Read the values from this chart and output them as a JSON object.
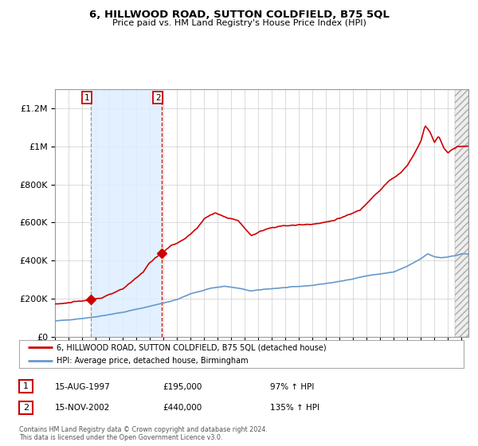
{
  "title": "6, HILLWOOD ROAD, SUTTON COLDFIELD, B75 5QL",
  "subtitle": "Price paid vs. HM Land Registry's House Price Index (HPI)",
  "hpi_label": "HPI: Average price, detached house, Birmingham",
  "property_label": "6, HILLWOOD ROAD, SUTTON COLDFIELD, B75 5QL (detached house)",
  "sale1_date": "15-AUG-1997",
  "sale1_price": 195000,
  "sale1_pct": "97% ↑ HPI",
  "sale2_date": "15-NOV-2002",
  "sale2_price": 440000,
  "sale2_pct": "135% ↑ HPI",
  "sale1_year": 1997.62,
  "sale2_year": 2002.88,
  "background_color": "#ffffff",
  "plot_bg_color": "#ffffff",
  "grid_color": "#cccccc",
  "hpi_color": "#6699cc",
  "property_color": "#cc0000",
  "shade_color": "#ddeeff",
  "vline1_color": "#999999",
  "vline2_color": "#cc0000",
  "ylim": [
    0,
    1300000
  ],
  "xlim_start": 1995.0,
  "xlim_end": 2025.5,
  "footer": "Contains HM Land Registry data © Crown copyright and database right 2024.\nThis data is licensed under the Open Government Licence v3.0.",
  "legend_box_color": "#ffffff",
  "legend_border_color": "#aaaaaa",
  "hatch_start": 2024.5
}
